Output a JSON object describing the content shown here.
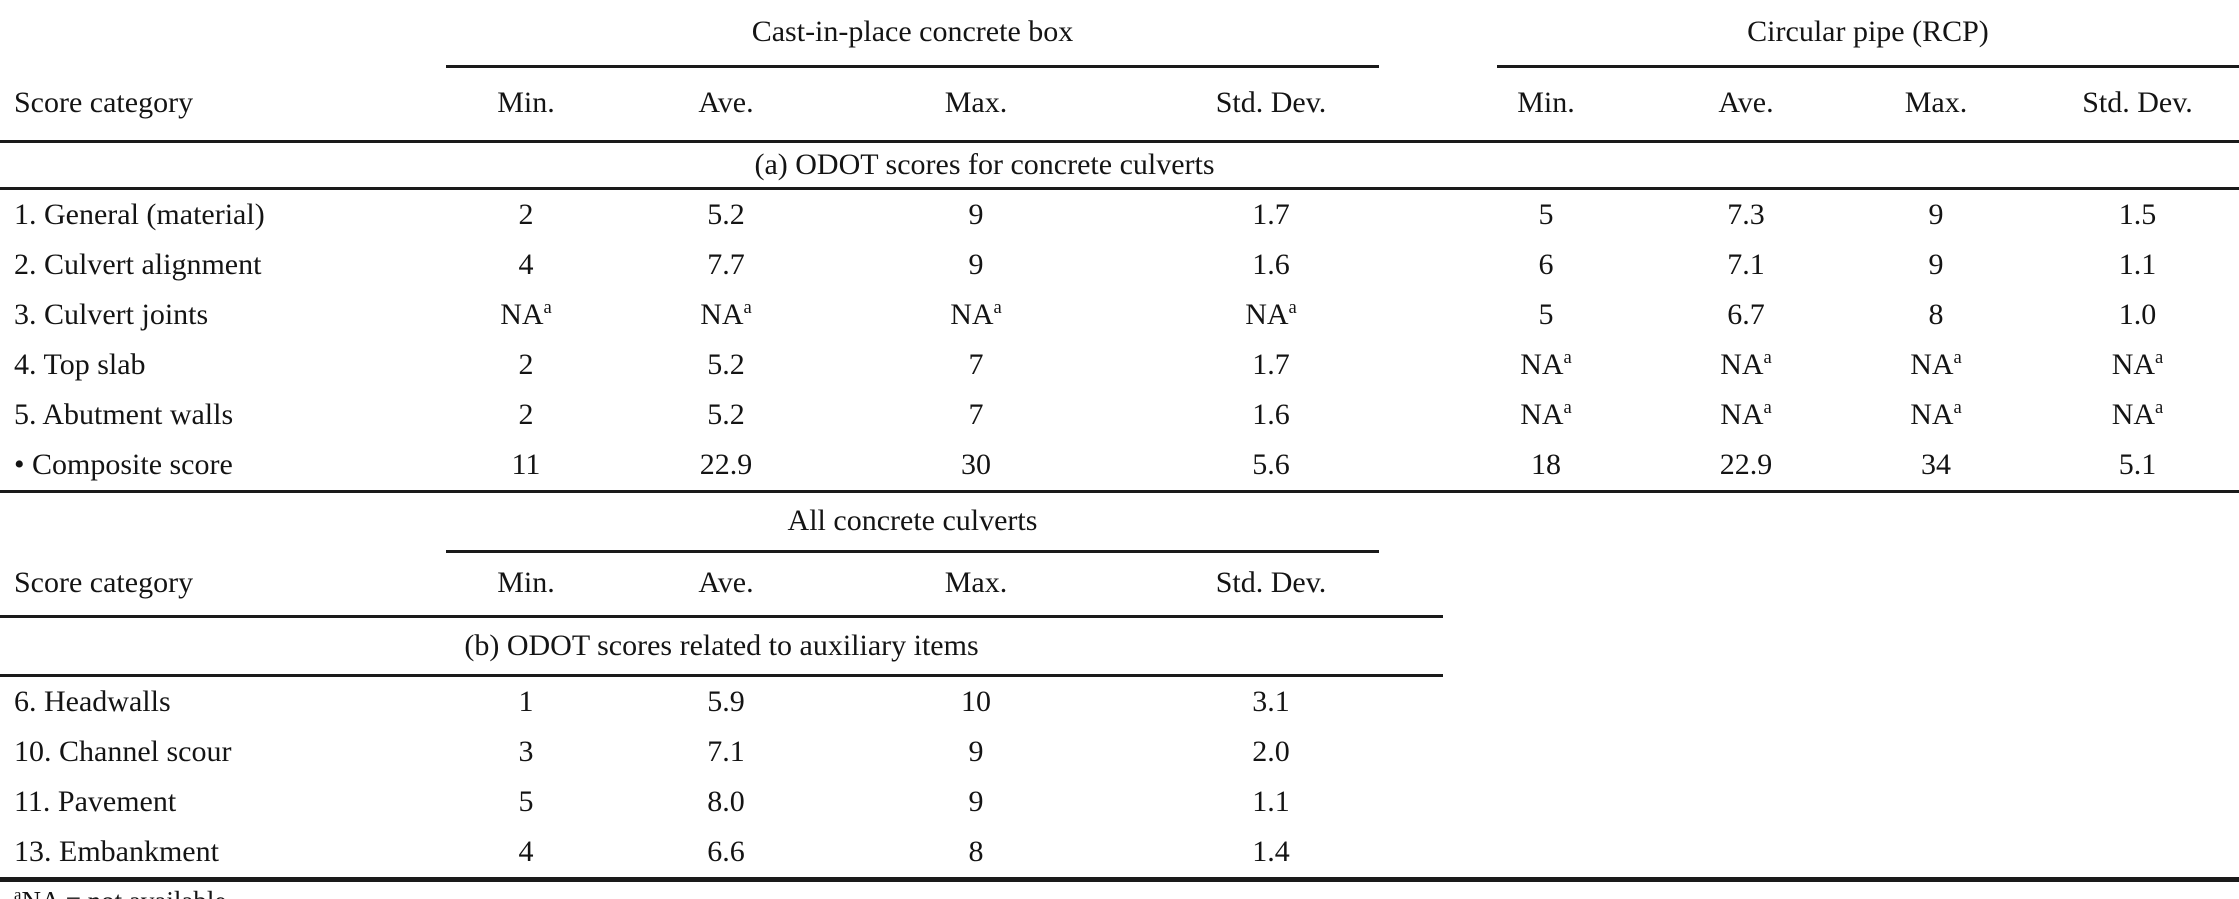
{
  "page": {
    "background": "#ffffff",
    "text_color": "#141414",
    "rule_color": "#1a1a1a"
  },
  "table_a": {
    "group1_title": "Cast-in-place concrete box",
    "group2_title": "Circular pipe (RCP)",
    "columns": [
      "Score category",
      "Min.",
      "Ave.",
      "Max.",
      "Std. Dev.",
      "Min.",
      "Ave.",
      "Max.",
      "Std. Dev."
    ],
    "section_title": "(a) ODOT scores for concrete culverts",
    "rows": [
      {
        "category": "1. General (material)",
        "cells": [
          "2",
          "5.2",
          "9",
          "1.7",
          "5",
          "7.3",
          "9",
          "1.5"
        ]
      },
      {
        "category": "2. Culvert alignment",
        "cells": [
          "4",
          "7.7",
          "9",
          "1.6",
          "6",
          "7.1",
          "9",
          "1.1"
        ]
      },
      {
        "category": "3. Culvert joints",
        "cells": [
          "NA^a",
          "NA^a",
          "NA^a",
          "NA^a",
          "5",
          "6.7",
          "8",
          "1.0"
        ]
      },
      {
        "category": "4. Top slab",
        "cells": [
          "2",
          "5.2",
          "7",
          "1.7",
          "NA^a",
          "NA^a",
          "NA^a",
          "NA^a"
        ]
      },
      {
        "category": "5. Abutment walls",
        "cells": [
          "2",
          "5.2",
          "7",
          "1.6",
          "NA^a",
          "NA^a",
          "NA^a",
          "NA^a"
        ]
      },
      {
        "category": "• Composite score",
        "cells": [
          "11",
          "22.9",
          "30",
          "5.6",
          "18",
          "22.9",
          "34",
          "5.1"
        ]
      }
    ]
  },
  "table_b": {
    "group_title": "All concrete culverts",
    "columns": [
      "Score category",
      "Min.",
      "Ave.",
      "Max.",
      "Std. Dev."
    ],
    "section_title": "(b) ODOT scores related to auxiliary items",
    "rows": [
      {
        "category": "6. Headwalls",
        "cells": [
          "1",
          "5.9",
          "10",
          "3.1"
        ]
      },
      {
        "category": "10. Channel scour",
        "cells": [
          "3",
          "7.1",
          "9",
          "2.0"
        ]
      },
      {
        "category": "11. Pavement",
        "cells": [
          "5",
          "8.0",
          "9",
          "1.1"
        ]
      },
      {
        "category": "13. Embankment",
        "cells": [
          "4",
          "6.6",
          "8",
          "1.4"
        ]
      }
    ]
  },
  "footnote": {
    "marker": "a",
    "text": "NA = not available"
  }
}
